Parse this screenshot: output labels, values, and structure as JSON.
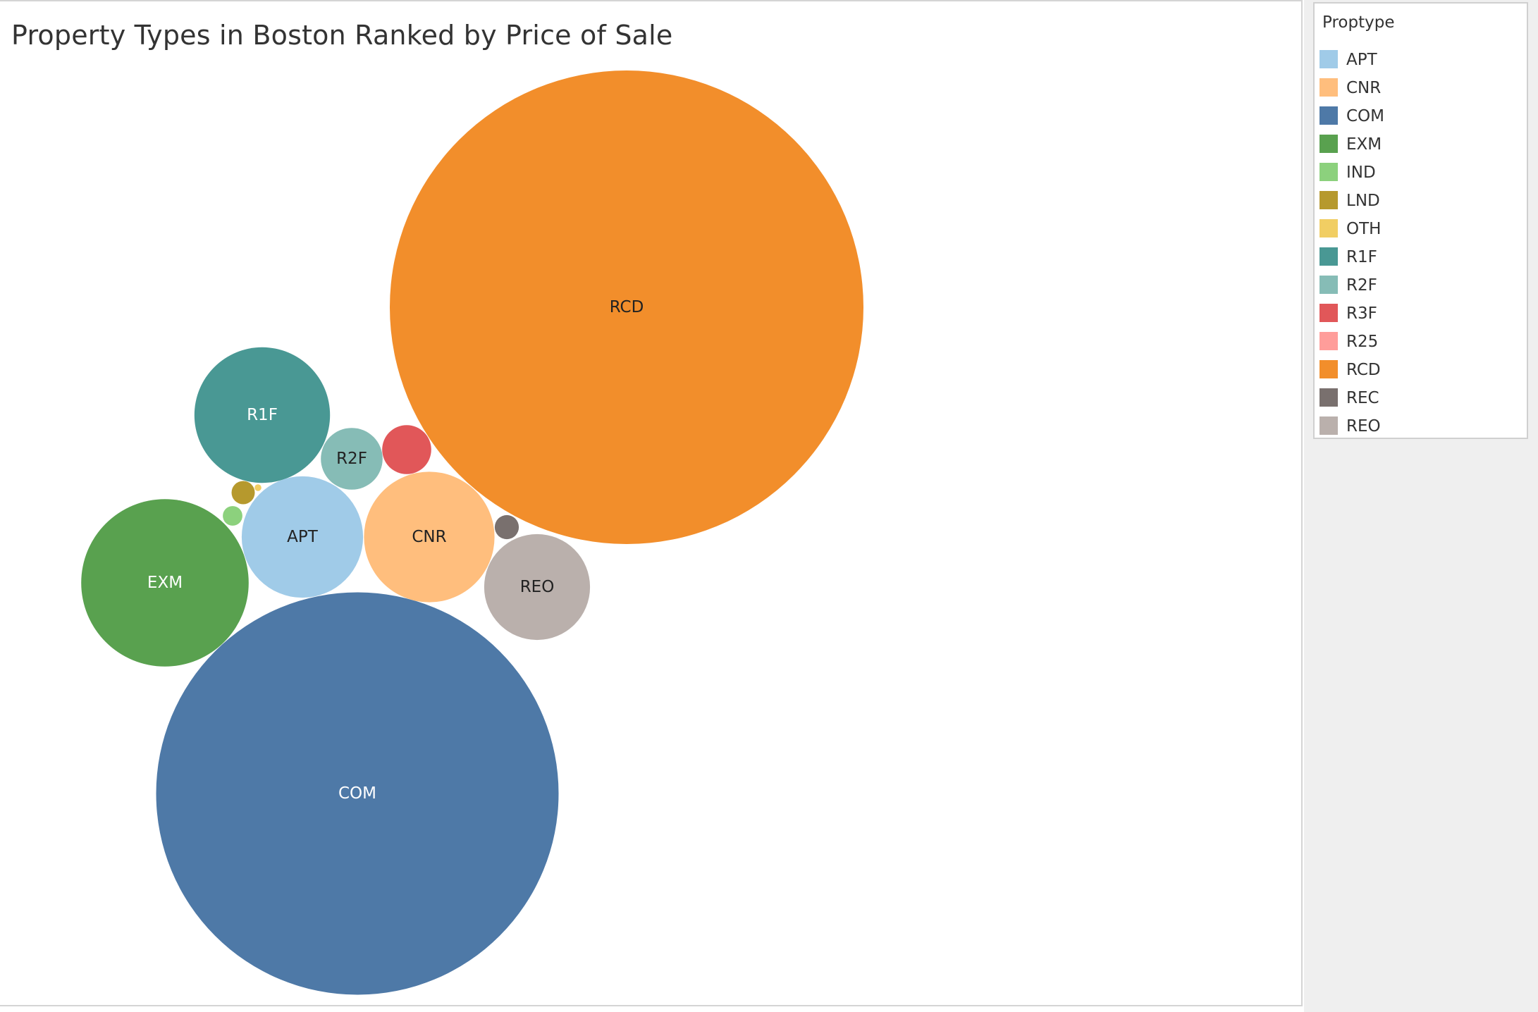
{
  "chart_data": {
    "type": "packed-bubble",
    "title": "Property Types in Boston Ranked by Price of Sale",
    "measure_unit": "relative",
    "bubbles": [
      {
        "name": "RCD",
        "value": 100,
        "color": "#f28e2b",
        "label_color": "#222222",
        "show_label": true
      },
      {
        "name": "COM",
        "value": 72.2,
        "color": "#4e79a7",
        "label_color": "#ffffff",
        "show_label": true
      },
      {
        "name": "EXM",
        "value": 12.5,
        "color": "#59a14f",
        "label_color": "#ffffff",
        "show_label": true
      },
      {
        "name": "R1F",
        "value": 8.2,
        "color": "#499894",
        "label_color": "#ffffff",
        "show_label": true
      },
      {
        "name": "APT",
        "value": 6.57,
        "color": "#a0cbe8",
        "label_color": "#222222",
        "show_label": true
      },
      {
        "name": "CNR",
        "value": 7.6,
        "color": "#ffbe7d",
        "label_color": "#222222",
        "show_label": true
      },
      {
        "name": "REO",
        "value": 5.0,
        "color": "#bab0ac",
        "label_color": "#222222",
        "show_label": true
      },
      {
        "name": "R2F",
        "value": 1.7,
        "color": "#86bcb6",
        "label_color": "#222222",
        "show_label": true
      },
      {
        "name": "R3F",
        "value": 1.07,
        "color": "#e15759",
        "label_color": "#ffffff",
        "show_label": false
      },
      {
        "name": "REC",
        "value": 0.26,
        "color": "#79706e",
        "label_color": "#ffffff",
        "show_label": false
      },
      {
        "name": "LND",
        "value": 0.24,
        "color": "#b6992d",
        "label_color": "#ffffff",
        "show_label": false
      },
      {
        "name": "IND",
        "value": 0.17,
        "color": "#8cd17d",
        "label_color": "#ffffff",
        "show_label": false
      },
      {
        "name": "OTH",
        "value": 0.02,
        "color": "#f1ce63",
        "label_color": "#ffffff",
        "show_label": false
      }
    ]
  },
  "legend": {
    "title": "Proptype",
    "items": [
      {
        "label": "APT",
        "color": "#a0cbe8"
      },
      {
        "label": "CNR",
        "color": "#ffbe7d"
      },
      {
        "label": "COM",
        "color": "#4e79a7"
      },
      {
        "label": "EXM",
        "color": "#59a14f"
      },
      {
        "label": "IND",
        "color": "#8cd17d"
      },
      {
        "label": "LND",
        "color": "#b6992d"
      },
      {
        "label": "OTH",
        "color": "#f1ce63"
      },
      {
        "label": "R1F",
        "color": "#499894"
      },
      {
        "label": "R2F",
        "color": "#86bcb6"
      },
      {
        "label": "R3F",
        "color": "#e15759"
      },
      {
        "label": "R25",
        "color": "#ff9d9a"
      },
      {
        "label": "RCD",
        "color": "#f28e2b"
      },
      {
        "label": "REC",
        "color": "#79706e"
      },
      {
        "label": "REO",
        "color": "#bab0ac"
      }
    ]
  }
}
